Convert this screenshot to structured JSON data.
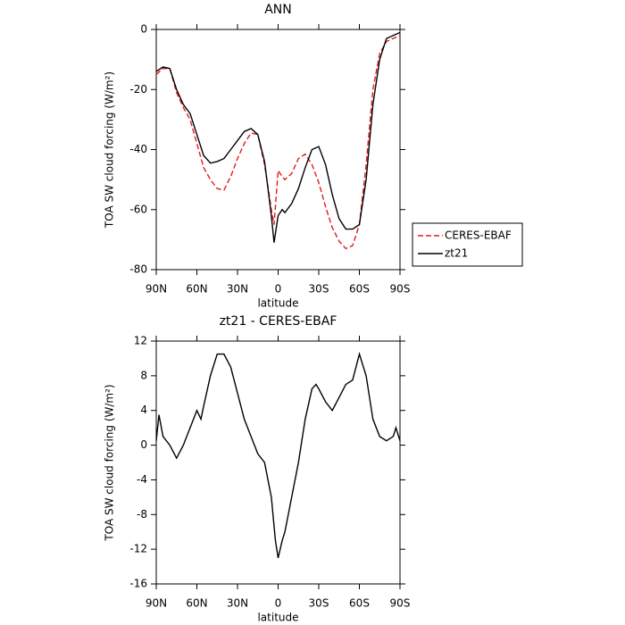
{
  "chart_data": [
    {
      "type": "line",
      "title": "ANN",
      "x_label": "latitude",
      "y_label": "TOA SW cloud forcing (W/m²)",
      "x": [
        90,
        85,
        80,
        75,
        70,
        65,
        60,
        55,
        50,
        45,
        40,
        35,
        30,
        25,
        20,
        15,
        10,
        5,
        3,
        0,
        -3,
        -5,
        -10,
        -15,
        -20,
        -25,
        -30,
        -35,
        -40,
        -45,
        -50,
        -55,
        -60,
        -65,
        -70,
        -75,
        -80,
        -85,
        -90
      ],
      "series": [
        {
          "name": "CERES-EBAF",
          "color": "#e41a1c",
          "linestyle": "dashed",
          "values": [
            -15,
            -13,
            -13,
            -21,
            -26,
            -30,
            -38,
            -46,
            -50,
            -53,
            -53.5,
            -49,
            -43,
            -38,
            -34.5,
            -35,
            -45,
            -60,
            -65,
            -47,
            -49,
            -50,
            -48,
            -43,
            -41.5,
            -45,
            -51,
            -59,
            -66,
            -70.5,
            -73,
            -72,
            -65,
            -45,
            -20,
            -8,
            -4,
            -3,
            -2
          ]
        },
        {
          "name": "zt21",
          "color": "#000000",
          "linestyle": "solid",
          "values": [
            -14,
            -12.5,
            -13,
            -20,
            -25,
            -28,
            -35,
            -42,
            -44.5,
            -44,
            -43,
            -40,
            -37,
            -34,
            -33,
            -35,
            -44,
            -62,
            -71,
            -62,
            -60,
            -61,
            -58,
            -53,
            -46,
            -40,
            -39,
            -45,
            -55,
            -63,
            -66.5,
            -66.5,
            -65,
            -50,
            -25,
            -10,
            -3,
            -2,
            -1
          ]
        }
      ],
      "xlim": [
        90,
        -90
      ],
      "xticks": [
        {
          "value": 90,
          "label": "90N"
        },
        {
          "value": 60,
          "label": "60N"
        },
        {
          "value": 30,
          "label": "30N"
        },
        0,
        {
          "value": -30,
          "label": "30S"
        },
        {
          "value": -60,
          "label": "60S"
        },
        {
          "value": -90,
          "label": "90S"
        }
      ],
      "ylim": [
        -80,
        0
      ],
      "yticks": [
        -80,
        -60,
        -40,
        -20,
        0
      ],
      "legend": "right"
    },
    {
      "type": "line",
      "title": "zt21 - CERES-EBAF",
      "x_label": "latitude",
      "y_label": "TOA SW cloud forcing (W/m²)",
      "x": [
        90,
        88,
        85,
        80,
        75,
        70,
        65,
        60,
        57,
        55,
        50,
        45,
        40,
        35,
        30,
        25,
        20,
        15,
        10,
        5,
        2,
        0,
        -3,
        -5,
        -10,
        -15,
        -20,
        -25,
        -28,
        -30,
        -35,
        -40,
        -45,
        -50,
        -55,
        -60,
        -65,
        -70,
        -75,
        -80,
        -85,
        -87,
        -90
      ],
      "series": [
        {
          "color": "#000000",
          "linestyle": "solid",
          "values": [
            0.5,
            3.5,
            1,
            0,
            -1.5,
            0,
            2,
            4,
            3,
            4.5,
            8,
            10.5,
            10.5,
            9,
            6,
            3,
            1,
            -1,
            -2,
            -6,
            -11,
            -13,
            -11,
            -10,
            -6,
            -2,
            3,
            6.5,
            7,
            6.5,
            5,
            4,
            5.5,
            7,
            7.5,
            10.5,
            8,
            3,
            1,
            0.5,
            1,
            2,
            0.5
          ]
        }
      ],
      "xlim": [
        90,
        -90
      ],
      "xticks": [
        {
          "value": 90,
          "label": "90N"
        },
        {
          "value": 60,
          "label": "60N"
        },
        {
          "value": 30,
          "label": "30N"
        },
        0,
        {
          "value": -30,
          "label": "30S"
        },
        {
          "value": -60,
          "label": "60S"
        },
        {
          "value": -90,
          "label": "90S"
        }
      ],
      "ylim": [
        -16,
        12
      ],
      "yticks": [
        -16,
        -12,
        -8,
        -4,
        0,
        4,
        8,
        12
      ]
    }
  ]
}
